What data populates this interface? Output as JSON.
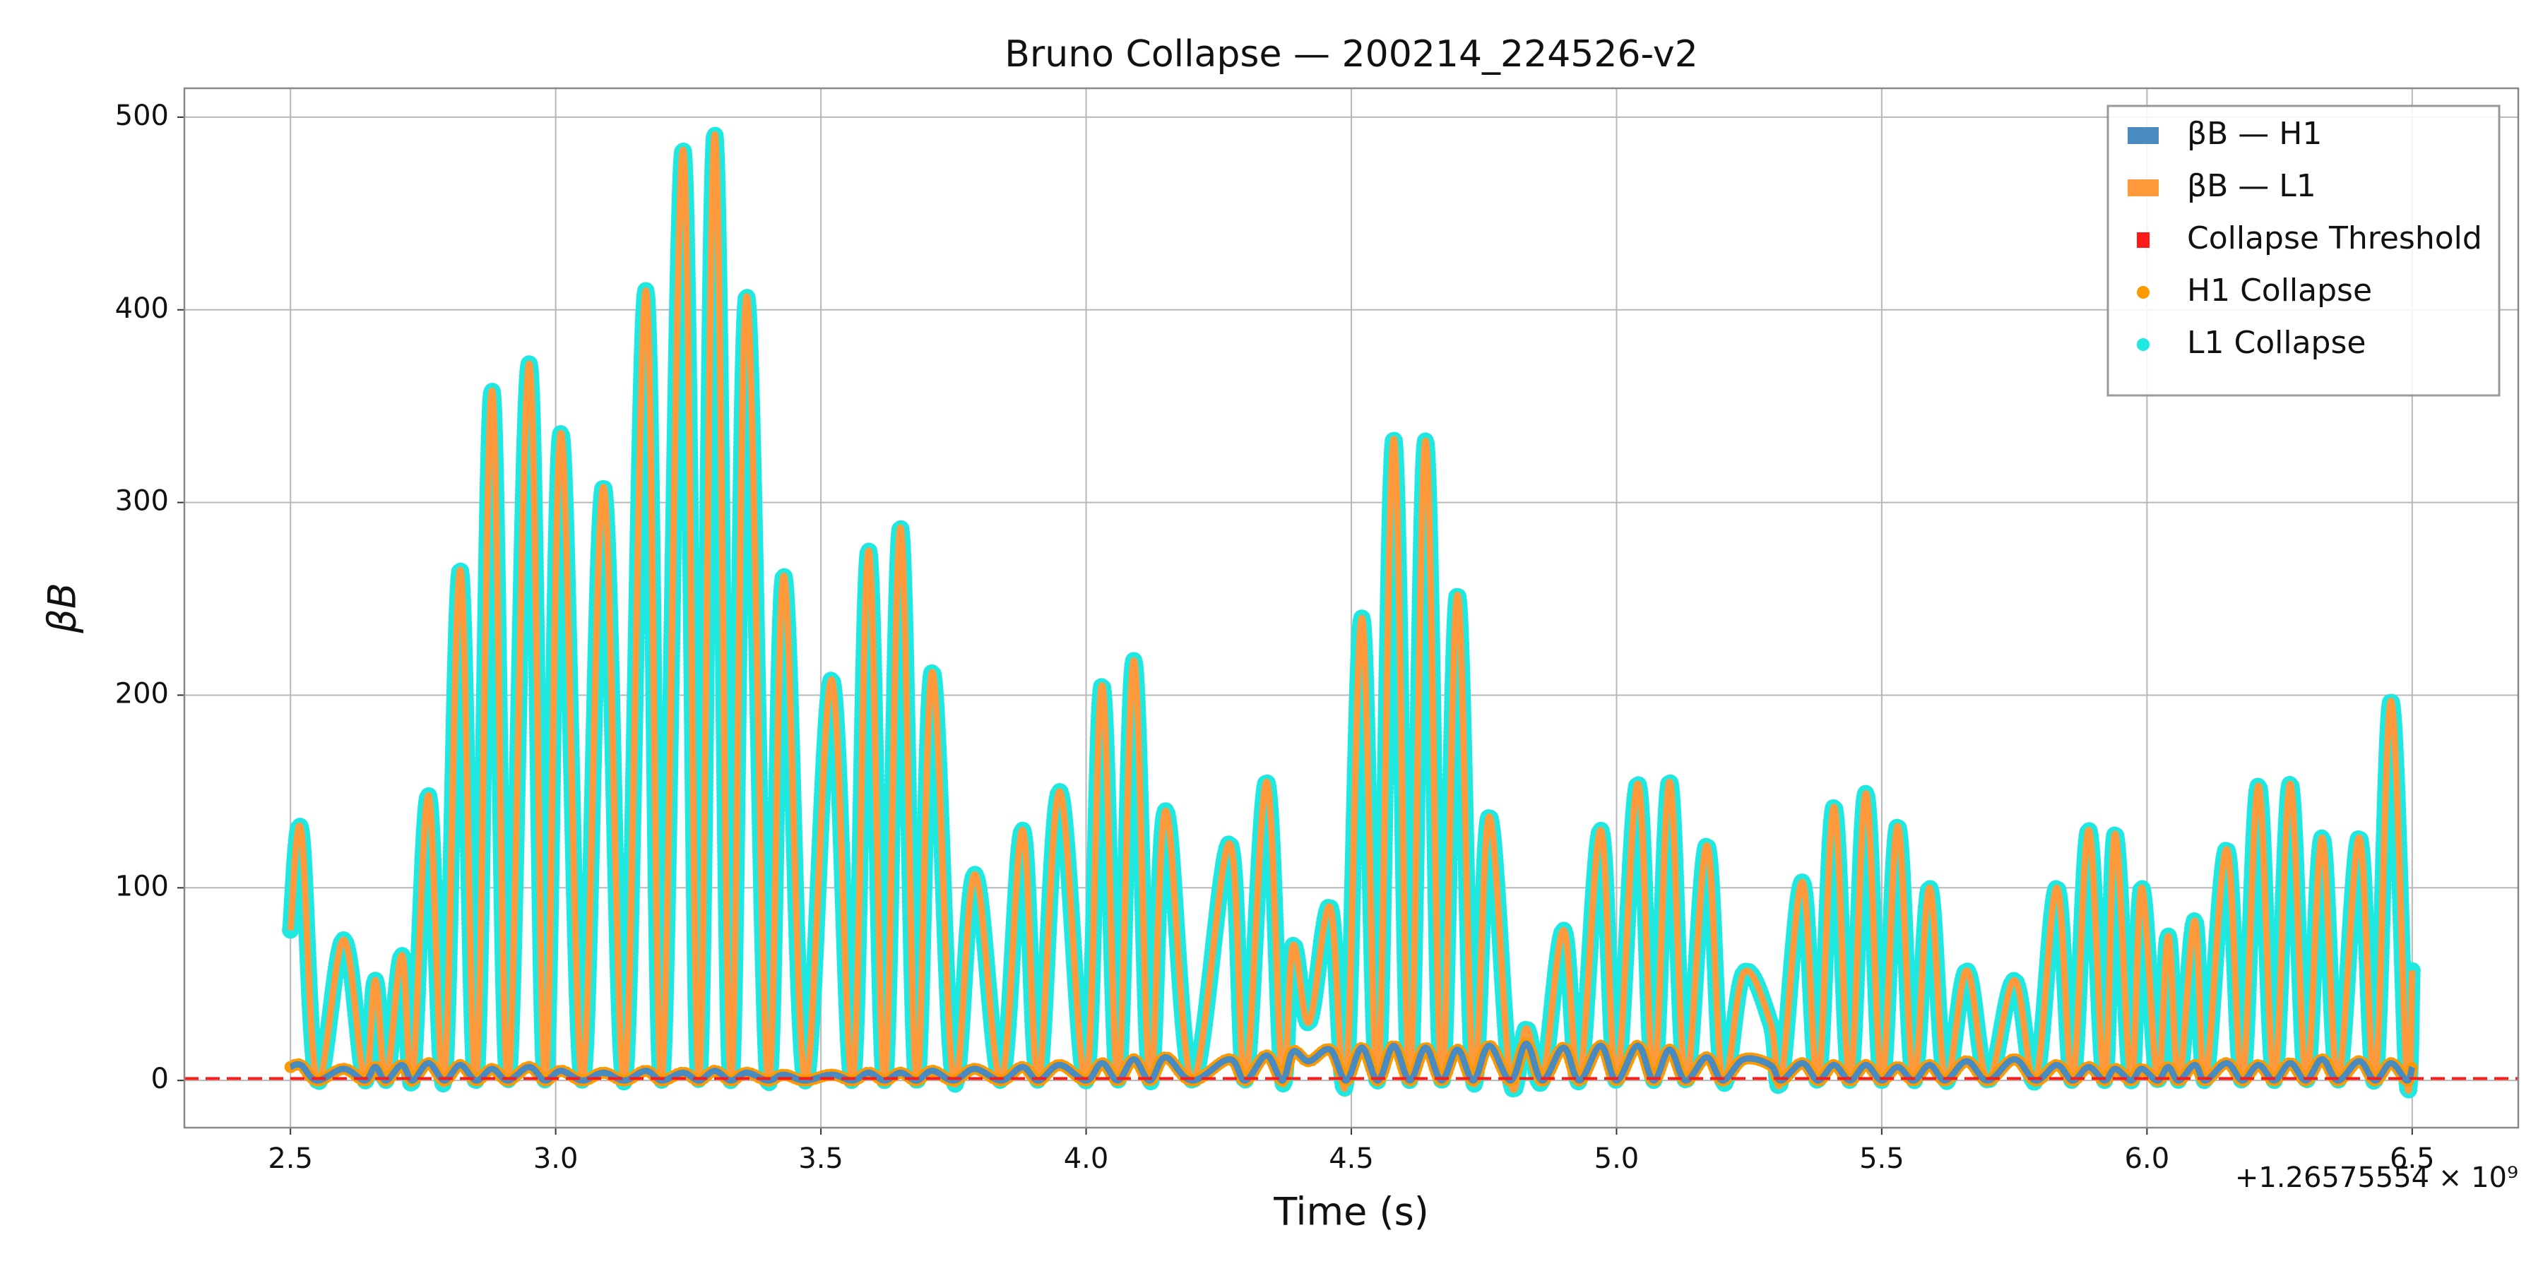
{
  "chart_data": {
    "type": "line",
    "title": "Bruno Collapse — 200214_224526-v2",
    "x_label": "Time (s)",
    "y_label": "βB",
    "x_offset_label": "+1.26575554 × 10⁹",
    "xlim": [
      2.3,
      6.7
    ],
    "ylim": [
      -24.5,
      515
    ],
    "xticks": [
      2.5,
      {
        "value": 3,
        "label": "3.0"
      },
      3.5,
      {
        "value": 4,
        "label": "4.0"
      },
      4.5,
      {
        "value": 5,
        "label": "5.0"
      },
      5.5,
      {
        "value": 6,
        "label": "6.0"
      },
      6.5
    ],
    "yticks": [
      0,
      100,
      200,
      300,
      400,
      500
    ],
    "grid": true,
    "legend": "upper right",
    "x": [
      2.5,
      2.52,
      2.55,
      2.6,
      2.64,
      2.66,
      2.68,
      2.71,
      2.73,
      2.76,
      2.79,
      2.82,
      2.85,
      2.88,
      2.91,
      2.95,
      2.98,
      3.01,
      3.05,
      3.09,
      3.13,
      3.17,
      3.2,
      3.24,
      3.27,
      3.3,
      3.33,
      3.36,
      3.4,
      3.43,
      3.47,
      3.52,
      3.56,
      3.59,
      3.62,
      3.65,
      3.68,
      3.71,
      3.75,
      3.79,
      3.84,
      3.88,
      3.91,
      3.95,
      4.0,
      4.03,
      4.06,
      4.09,
      4.12,
      4.15,
      4.2,
      4.27,
      4.3,
      4.34,
      4.37,
      4.39,
      4.42,
      4.46,
      4.49,
      4.52,
      4.55,
      4.58,
      4.61,
      4.64,
      4.67,
      4.7,
      4.73,
      4.76,
      4.8,
      4.83,
      4.86,
      4.9,
      4.93,
      4.97,
      5.0,
      5.04,
      5.07,
      5.1,
      5.13,
      5.17,
      5.2,
      5.24,
      5.29,
      5.31,
      5.35,
      5.38,
      5.41,
      5.44,
      5.47,
      5.5,
      5.53,
      5.56,
      5.59,
      5.62,
      5.66,
      5.7,
      5.75,
      5.79,
      5.83,
      5.86,
      5.89,
      5.92,
      5.94,
      5.97,
      5.99,
      6.02,
      6.04,
      6.06,
      6.09,
      6.11,
      6.15,
      6.18,
      6.21,
      6.24,
      6.27,
      6.3,
      6.33,
      6.36,
      6.4,
      6.43,
      6.46,
      6.49,
      6.5
    ],
    "series": [
      {
        "name": "βB — H1",
        "type": "line",
        "color": "#4a8bbf",
        "values": [
          7,
          8,
          0,
          6,
          0,
          7,
          0,
          8,
          0,
          9,
          0,
          8,
          0,
          6,
          0,
          7,
          0,
          5,
          0,
          4,
          0,
          5,
          0,
          4,
          0,
          5,
          0,
          4,
          0,
          3,
          0,
          3,
          0,
          4,
          0,
          4,
          0,
          5,
          0,
          6,
          0,
          7,
          0,
          8,
          0,
          9,
          0,
          11,
          0,
          12,
          0,
          11,
          0,
          13,
          0,
          15,
          10,
          16,
          0,
          17,
          0,
          18,
          0,
          17,
          0,
          16,
          0,
          18,
          0,
          19,
          0,
          17,
          0,
          18,
          0,
          18,
          0,
          16,
          0,
          12,
          0,
          11,
          8,
          0,
          9,
          0,
          8,
          0,
          8,
          0,
          7,
          0,
          8,
          0,
          10,
          0,
          11,
          0,
          8,
          0,
          7,
          0,
          6,
          0,
          6,
          0,
          7,
          0,
          8,
          0,
          9,
          0,
          8,
          0,
          9,
          0,
          11,
          0,
          10,
          0,
          9,
          0,
          7
        ]
      },
      {
        "name": "βB — L1",
        "type": "line",
        "color": "#ff9a3c",
        "values": [
          78,
          130,
          0,
          73,
          0,
          52,
          0,
          65,
          0,
          148,
          0,
          265,
          0,
          358,
          0,
          372,
          0,
          336,
          0,
          308,
          0,
          410,
          0,
          483,
          0,
          491,
          0,
          407,
          0,
          262,
          0,
          208,
          0,
          275,
          0,
          287,
          0,
          212,
          0,
          107,
          0,
          130,
          0,
          150,
          0,
          205,
          0,
          218,
          0,
          140,
          0,
          123,
          0,
          155,
          0,
          70,
          30,
          90,
          0,
          240,
          0,
          333,
          0,
          332,
          0,
          252,
          0,
          137,
          0,
          27,
          0,
          78,
          0,
          130,
          0,
          154,
          0,
          155,
          0,
          122,
          0,
          56,
          30,
          0,
          103,
          0,
          142,
          0,
          149,
          0,
          132,
          0,
          100,
          0,
          57,
          0,
          52,
          0,
          100,
          0,
          130,
          0,
          128,
          0,
          100,
          0,
          75,
          0,
          83,
          0,
          120,
          0,
          153,
          0,
          154,
          0,
          126,
          0,
          126,
          0,
          197,
          0,
          57
        ]
      },
      {
        "name": "Collapse Threshold",
        "type": "hline",
        "color": "#ff1a1a",
        "y": 1
      },
      {
        "name": "H1 Collapse",
        "type": "scatter",
        "color": "#ff9900",
        "values": [
          7,
          8,
          0,
          6,
          0,
          7,
          0,
          8,
          0,
          9,
          0,
          8,
          0,
          6,
          0,
          7,
          0,
          5,
          0,
          4,
          0,
          5,
          0,
          4,
          0,
          5,
          0,
          4,
          0,
          3,
          0,
          3,
          0,
          4,
          0,
          4,
          0,
          5,
          0,
          6,
          0,
          7,
          0,
          8,
          0,
          9,
          0,
          11,
          0,
          12,
          0,
          11,
          0,
          13,
          0,
          15,
          10,
          16,
          0,
          17,
          0,
          18,
          0,
          17,
          0,
          16,
          0,
          18,
          0,
          19,
          0,
          17,
          0,
          18,
          0,
          18,
          0,
          16,
          0,
          12,
          0,
          11,
          8,
          0,
          9,
          0,
          8,
          0,
          8,
          0,
          7,
          0,
          8,
          0,
          10,
          0,
          11,
          0,
          8,
          0,
          7,
          0,
          6,
          0,
          6,
          0,
          7,
          0,
          8,
          0,
          9,
          0,
          8,
          0,
          9,
          0,
          11,
          0,
          10,
          0,
          9,
          0,
          7
        ]
      },
      {
        "name": "L1 Collapse",
        "type": "scatter",
        "color": "#1fe8e0",
        "values": [
          78,
          130,
          0,
          73,
          0,
          52,
          0,
          65,
          0,
          148,
          0,
          265,
          0,
          358,
          0,
          372,
          0,
          336,
          0,
          308,
          0,
          410,
          0,
          483,
          0,
          491,
          0,
          407,
          0,
          262,
          0,
          208,
          0,
          275,
          0,
          287,
          0,
          212,
          0,
          107,
          0,
          130,
          0,
          150,
          0,
          205,
          0,
          218,
          0,
          140,
          0,
          123,
          0,
          155,
          0,
          70,
          30,
          90,
          0,
          240,
          0,
          333,
          0,
          332,
          0,
          252,
          0,
          137,
          0,
          27,
          0,
          78,
          0,
          130,
          0,
          154,
          0,
          155,
          0,
          122,
          0,
          56,
          30,
          0,
          103,
          0,
          142,
          0,
          149,
          0,
          132,
          0,
          100,
          0,
          57,
          0,
          52,
          0,
          100,
          0,
          130,
          0,
          128,
          0,
          100,
          0,
          75,
          0,
          83,
          0,
          120,
          0,
          153,
          0,
          154,
          0,
          126,
          0,
          126,
          0,
          197,
          0,
          57
        ]
      }
    ]
  }
}
